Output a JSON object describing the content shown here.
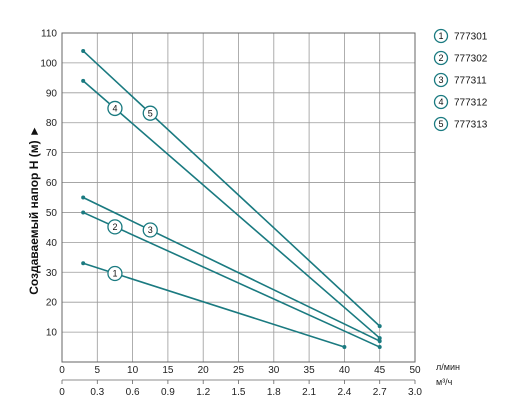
{
  "chart_data": {
    "type": "line",
    "ylabel": "Создаваемый напор Н (м) ►",
    "x_unit_primary": "л/мин",
    "x_unit_secondary": "м³/ч",
    "xlim": [
      0,
      50
    ],
    "ylim": [
      0,
      110
    ],
    "x_ticks": [
      "0",
      "5",
      "10",
      "15",
      "20",
      "25",
      "30",
      "35",
      "40",
      "45",
      "50"
    ],
    "x_ticks_secondary": [
      "0",
      "0.3",
      "0.6",
      "0.9",
      "1.2",
      "1.5",
      "1.8",
      "2.1",
      "2.4",
      "2.7",
      "3.0"
    ],
    "y_ticks": [
      "10",
      "20",
      "30",
      "40",
      "50",
      "60",
      "70",
      "80",
      "90",
      "100",
      "110"
    ],
    "grid": true,
    "legend_position": "right",
    "line_color": "#1a7a80",
    "series": [
      {
        "name": "777301",
        "marker": "1",
        "x": [
          3,
          40
        ],
        "y": [
          33,
          5
        ]
      },
      {
        "name": "777302",
        "marker": "2",
        "x": [
          3,
          45
        ],
        "y": [
          50,
          5
        ]
      },
      {
        "name": "777311",
        "marker": "3",
        "x": [
          3,
          45
        ],
        "y": [
          55,
          7
        ]
      },
      {
        "name": "777312",
        "marker": "4",
        "x": [
          3,
          45
        ],
        "y": [
          94,
          8
        ]
      },
      {
        "name": "777313",
        "marker": "5",
        "x": [
          3,
          45
        ],
        "y": [
          104,
          12
        ]
      }
    ]
  }
}
